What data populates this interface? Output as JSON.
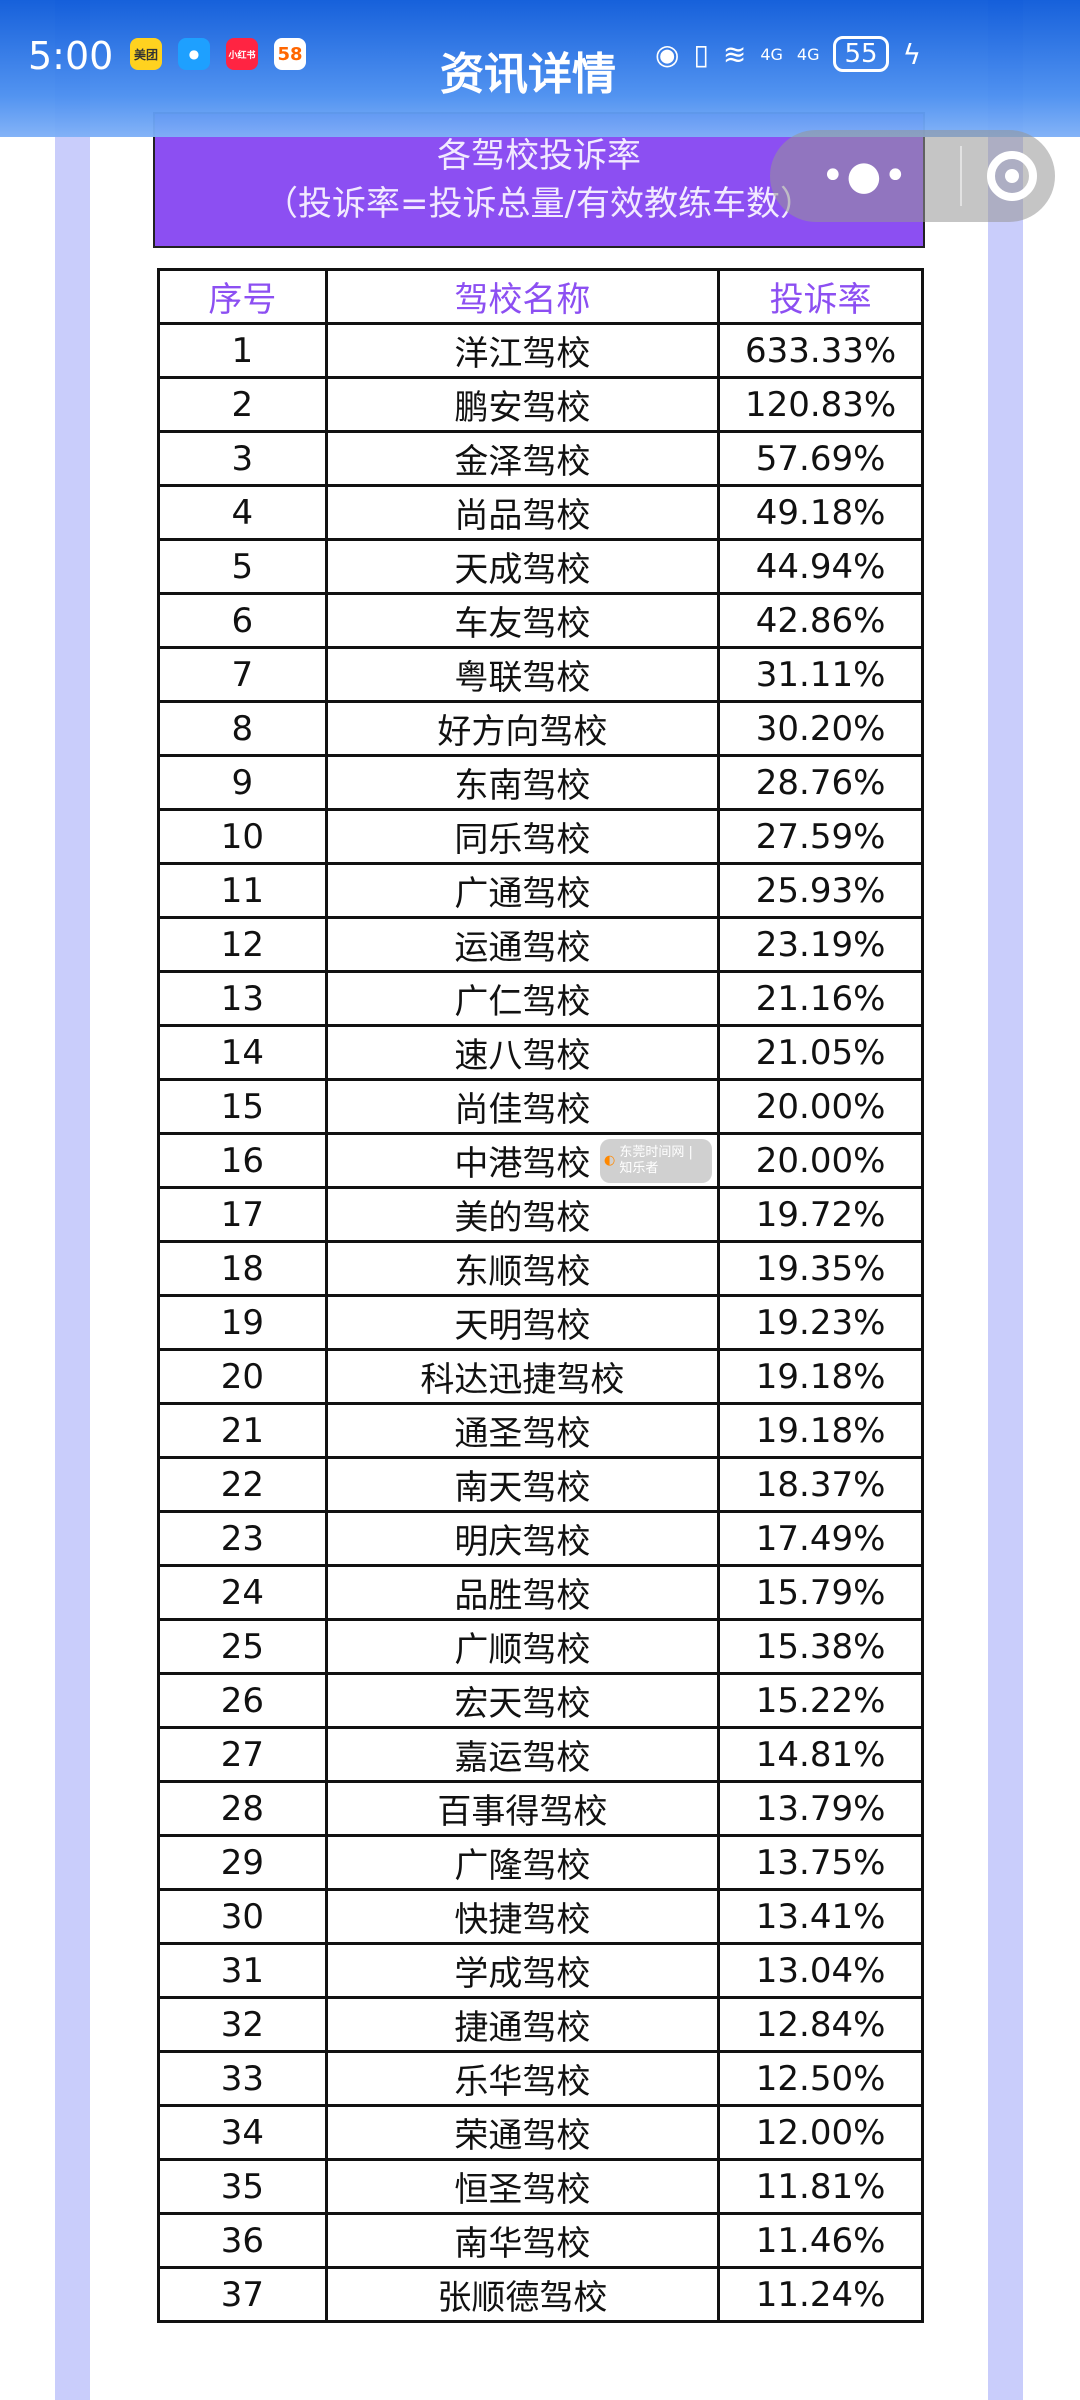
{
  "status_bar": {
    "time": "5:00",
    "apps": [
      "美团",
      "消息",
      "小红书",
      "58"
    ],
    "battery": "55",
    "network": [
      "4G",
      "4G"
    ]
  },
  "header": {
    "title": "资讯详情"
  },
  "capsule": {
    "more_icon": "more-dots-icon",
    "close_icon": "target-circle-icon"
  },
  "table_title": {
    "line1": "各驾校投诉率",
    "line2": "（投诉率=投诉总量/有效教练车数）"
  },
  "table": {
    "headers": [
      "序号",
      "驾校名称",
      "投诉率"
    ],
    "rows": [
      [
        "1",
        "洋江驾校",
        "633.33%"
      ],
      [
        "2",
        "鹏安驾校",
        "120.83%"
      ],
      [
        "3",
        "金泽驾校",
        "57.69%"
      ],
      [
        "4",
        "尚品驾校",
        "49.18%"
      ],
      [
        "5",
        "天成驾校",
        "44.94%"
      ],
      [
        "6",
        "车友驾校",
        "42.86%"
      ],
      [
        "7",
        "粤联驾校",
        "31.11%"
      ],
      [
        "8",
        "好方向驾校",
        "30.20%"
      ],
      [
        "9",
        "东南驾校",
        "28.76%"
      ],
      [
        "10",
        "同乐驾校",
        "27.59%"
      ],
      [
        "11",
        "广通驾校",
        "25.93%"
      ],
      [
        "12",
        "运通驾校",
        "23.19%"
      ],
      [
        "13",
        "广仁驾校",
        "21.16%"
      ],
      [
        "14",
        "速八驾校",
        "21.05%"
      ],
      [
        "15",
        "尚佳驾校",
        "20.00%"
      ],
      [
        "16",
        "中港驾校",
        "20.00%"
      ],
      [
        "17",
        "美的驾校",
        "19.72%"
      ],
      [
        "18",
        "东顺驾校",
        "19.35%"
      ],
      [
        "19",
        "天明驾校",
        "19.23%"
      ],
      [
        "20",
        "科达迅捷驾校",
        "19.18%"
      ],
      [
        "21",
        "通圣驾校",
        "19.18%"
      ],
      [
        "22",
        "南天驾校",
        "18.37%"
      ],
      [
        "23",
        "明庆驾校",
        "17.49%"
      ],
      [
        "24",
        "品胜驾校",
        "15.79%"
      ],
      [
        "25",
        "广顺驾校",
        "15.38%"
      ],
      [
        "26",
        "宏天驾校",
        "15.22%"
      ],
      [
        "27",
        "嘉运驾校",
        "14.81%"
      ],
      [
        "28",
        "百事得驾校",
        "13.79%"
      ],
      [
        "29",
        "广隆驾校",
        "13.75%"
      ],
      [
        "30",
        "快捷驾校",
        "13.41%"
      ],
      [
        "31",
        "学成驾校",
        "13.04%"
      ],
      [
        "32",
        "捷通驾校",
        "12.84%"
      ],
      [
        "33",
        "乐华驾校",
        "12.50%"
      ],
      [
        "34",
        "荣通驾校",
        "12.00%"
      ],
      [
        "35",
        "恒圣驾校",
        "11.81%"
      ],
      [
        "36",
        "南华驾校",
        "11.46%"
      ],
      [
        "37",
        "张顺德驾校",
        "11.24%"
      ]
    ]
  },
  "watermark": {
    "text": "东莞时间网 | 知乐者"
  }
}
